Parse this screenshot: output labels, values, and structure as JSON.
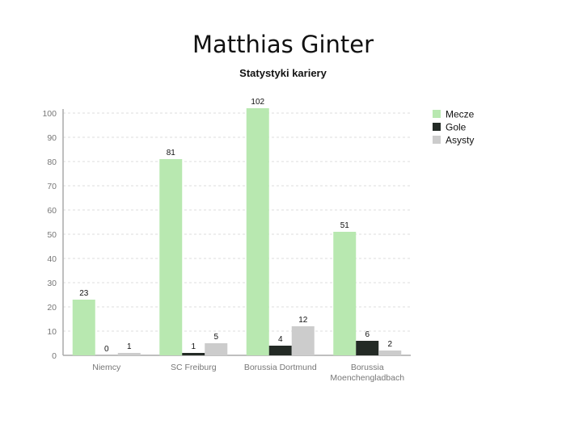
{
  "chart_data": {
    "type": "bar",
    "title": "Matthias Ginter",
    "subtitle": "Statystyki kariery",
    "xlabel": "",
    "ylabel": "",
    "ylim": [
      0,
      100
    ],
    "yticks": [
      0,
      10,
      20,
      30,
      40,
      50,
      60,
      70,
      80,
      90,
      100
    ],
    "grid": true,
    "legend_position": "right",
    "categories": [
      [
        "Niemcy"
      ],
      [
        "SC Freiburg"
      ],
      [
        "Borussia Dortmund"
      ],
      [
        "Borussia",
        "Moenchengladbach"
      ]
    ],
    "series": [
      {
        "name": "Mecze",
        "color": "#b8e8b0",
        "values": [
          23,
          81,
          102,
          51
        ]
      },
      {
        "name": "Gole",
        "color": "#232a25",
        "values": [
          0,
          1,
          4,
          6
        ]
      },
      {
        "name": "Asysty",
        "color": "#cccccc",
        "values": [
          1,
          5,
          12,
          2
        ]
      }
    ]
  }
}
